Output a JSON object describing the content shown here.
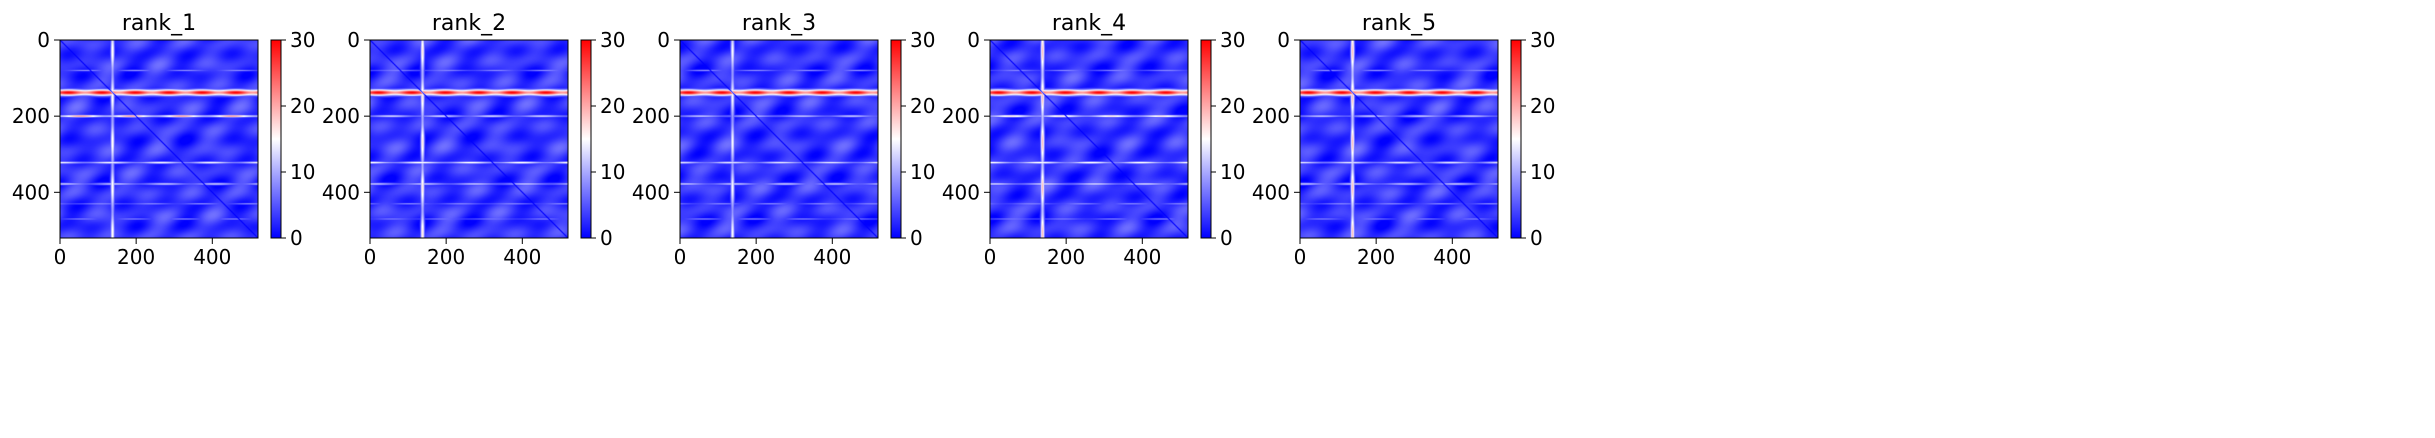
{
  "chart_data": [
    {
      "type": "heatmap",
      "title": "rank_1",
      "xlabel": "",
      "ylabel": "",
      "xlim": [
        0,
        520
      ],
      "ylim": [
        520,
        0
      ],
      "xticks": [
        0,
        200,
        400
      ],
      "yticks": [
        0,
        200,
        400
      ],
      "colorbar": {
        "range": [
          0,
          30
        ],
        "ticks": [
          0,
          10,
          20,
          30
        ],
        "colormap": [
          "#0000ff",
          "#ffffff",
          "#ff0000"
        ]
      },
      "bands": {
        "horizontal": [
          {
            "center": 138,
            "value": 30,
            "width": 8
          },
          {
            "center": 200,
            "value": 22,
            "width": 3
          },
          {
            "center": 322,
            "value": 15,
            "width": 3
          },
          {
            "center": 378,
            "value": 12,
            "width": 3
          },
          {
            "center": 80,
            "value": 9,
            "width": 2
          },
          {
            "center": 430,
            "value": 9,
            "width": 2
          },
          {
            "center": 470,
            "value": 8,
            "width": 2
          }
        ],
        "vertical": [
          {
            "center": 138,
            "value": 16,
            "width": 5
          }
        ],
        "diagonal_value": 0
      }
    },
    {
      "type": "heatmap",
      "title": "rank_2",
      "xlabel": "",
      "ylabel": "",
      "xlim": [
        0,
        520
      ],
      "ylim": [
        520,
        0
      ],
      "xticks": [
        0,
        200,
        400
      ],
      "yticks": [
        0,
        200,
        400
      ],
      "colorbar": {
        "range": [
          0,
          30
        ],
        "ticks": [
          0,
          10,
          20,
          30
        ],
        "colormap": [
          "#0000ff",
          "#ffffff",
          "#ff0000"
        ]
      },
      "bands": {
        "horizontal": [
          {
            "center": 138,
            "value": 30,
            "width": 8
          },
          {
            "center": 200,
            "value": 13,
            "width": 3
          },
          {
            "center": 322,
            "value": 16,
            "width": 3
          },
          {
            "center": 378,
            "value": 12,
            "width": 3
          },
          {
            "center": 80,
            "value": 9,
            "width": 2
          },
          {
            "center": 430,
            "value": 9,
            "width": 2
          },
          {
            "center": 470,
            "value": 8,
            "width": 2
          }
        ],
        "vertical": [
          {
            "center": 138,
            "value": 17,
            "width": 5
          }
        ],
        "diagonal_value": 0
      }
    },
    {
      "type": "heatmap",
      "title": "rank_3",
      "xlabel": "",
      "ylabel": "",
      "xlim": [
        0,
        520
      ],
      "ylim": [
        520,
        0
      ],
      "xticks": [
        0,
        200,
        400
      ],
      "yticks": [
        0,
        200,
        400
      ],
      "colorbar": {
        "range": [
          0,
          30
        ],
        "ticks": [
          0,
          10,
          20,
          30
        ],
        "colormap": [
          "#0000ff",
          "#ffffff",
          "#ff0000"
        ]
      },
      "bands": {
        "horizontal": [
          {
            "center": 138,
            "value": 30,
            "width": 8
          },
          {
            "center": 200,
            "value": 12,
            "width": 3
          },
          {
            "center": 322,
            "value": 14,
            "width": 3
          },
          {
            "center": 378,
            "value": 12,
            "width": 3
          },
          {
            "center": 80,
            "value": 9,
            "width": 2
          },
          {
            "center": 430,
            "value": 9,
            "width": 2
          },
          {
            "center": 470,
            "value": 8,
            "width": 2
          }
        ],
        "vertical": [
          {
            "center": 138,
            "value": 15,
            "width": 5
          }
        ],
        "diagonal_value": 0
      }
    },
    {
      "type": "heatmap",
      "title": "rank_4",
      "xlabel": "",
      "ylabel": "",
      "xlim": [
        0,
        520
      ],
      "ylim": [
        520,
        0
      ],
      "xticks": [
        0,
        200,
        400
      ],
      "yticks": [
        0,
        200,
        400
      ],
      "colorbar": {
        "range": [
          0,
          30
        ],
        "ticks": [
          0,
          10,
          20,
          30
        ],
        "colormap": [
          "#0000ff",
          "#ffffff",
          "#ff0000"
        ]
      },
      "bands": {
        "horizontal": [
          {
            "center": 138,
            "value": 30,
            "width": 8
          },
          {
            "center": 200,
            "value": 18,
            "width": 3
          },
          {
            "center": 322,
            "value": 16,
            "width": 3
          },
          {
            "center": 378,
            "value": 13,
            "width": 3
          },
          {
            "center": 80,
            "value": 9,
            "width": 2
          },
          {
            "center": 430,
            "value": 9,
            "width": 2
          },
          {
            "center": 470,
            "value": 8,
            "width": 2
          }
        ],
        "vertical": [
          {
            "center": 138,
            "value": 19,
            "width": 5
          }
        ],
        "diagonal_value": 0
      }
    },
    {
      "type": "heatmap",
      "title": "rank_5",
      "xlabel": "",
      "ylabel": "",
      "xlim": [
        0,
        520
      ],
      "ylim": [
        520,
        0
      ],
      "xticks": [
        0,
        200,
        400
      ],
      "yticks": [
        0,
        200,
        400
      ],
      "colorbar": {
        "range": [
          0,
          30
        ],
        "ticks": [
          0,
          10,
          20,
          30
        ],
        "colormap": [
          "#0000ff",
          "#ffffff",
          "#ff0000"
        ]
      },
      "bands": {
        "horizontal": [
          {
            "center": 138,
            "value": 30,
            "width": 8
          },
          {
            "center": 200,
            "value": 12,
            "width": 3
          },
          {
            "center": 322,
            "value": 14,
            "width": 3
          },
          {
            "center": 378,
            "value": 12,
            "width": 3
          },
          {
            "center": 80,
            "value": 9,
            "width": 2
          },
          {
            "center": 430,
            "value": 9,
            "width": 2
          },
          {
            "center": 470,
            "value": 8,
            "width": 2
          }
        ],
        "vertical": [
          {
            "center": 138,
            "value": 19,
            "width": 5
          }
        ],
        "diagonal_value": 0
      }
    }
  ]
}
